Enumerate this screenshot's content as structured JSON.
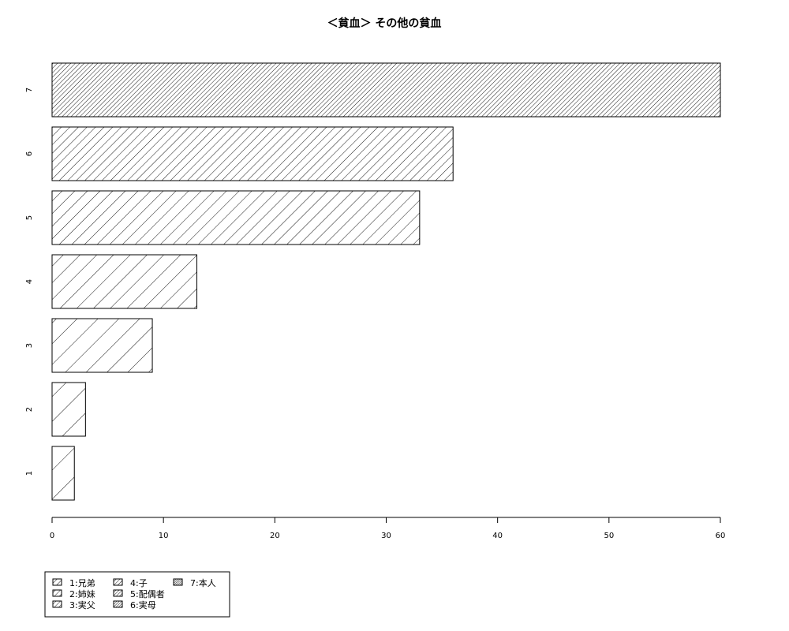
{
  "chart_data": {
    "type": "bar",
    "orientation": "horizontal",
    "title": "＜貧血＞ その他の貧血",
    "xlabel": "",
    "ylabel": "",
    "categories": [
      "1",
      "2",
      "3",
      "4",
      "5",
      "6",
      "7"
    ],
    "values": [
      2,
      3,
      9,
      13,
      33,
      36,
      60
    ],
    "xlim": [
      0,
      60
    ],
    "xticks": [
      0,
      10,
      20,
      30,
      40,
      50,
      60
    ],
    "fill": "hatched",
    "grid": false,
    "legend": {
      "placement": "bottom-left",
      "entries": [
        "1:兄弟",
        "2:姉妹",
        "3:実父",
        "4:子",
        "5:配偶者",
        "6:実母",
        "7:本人"
      ]
    }
  }
}
